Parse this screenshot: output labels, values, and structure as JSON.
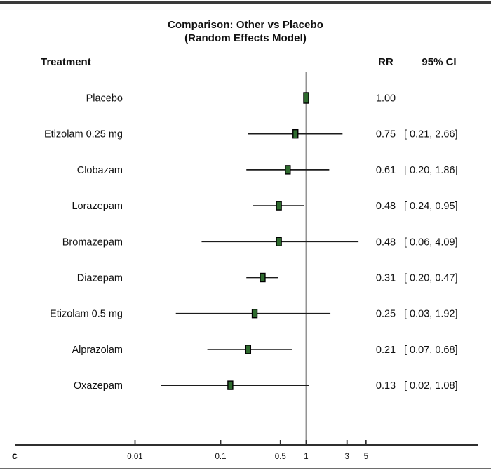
{
  "frame": {
    "top_rule_color": "#3a3a3a",
    "bottom_rule_color": "#6e6e6e"
  },
  "chart_data": {
    "type": "forest",
    "title": "Comparison: Other vs Placebo",
    "subtitle": "(Random Effects Model)",
    "panel_label": "c",
    "columns": {
      "treatment": "Treatment",
      "rr": "RR",
      "ci": "95% CI"
    },
    "x_scale": "log10",
    "ref_line": 1,
    "x_ticks": [
      {
        "value": 0.01,
        "label": "0.01"
      },
      {
        "value": 0.1,
        "label": "0.1"
      },
      {
        "value": 0.5,
        "label": "0.5"
      },
      {
        "value": 1,
        "label": "1"
      },
      {
        "value": 3,
        "label": "3"
      },
      {
        "value": 5,
        "label": "5"
      }
    ],
    "rows": [
      {
        "label": "Placebo",
        "rr": 1.0,
        "rr_text": "1.00",
        "lower": null,
        "upper": null,
        "ci_text": "",
        "marker_h": 15
      },
      {
        "label": "Etizolam 0.25 mg",
        "rr": 0.75,
        "rr_text": "0.75",
        "lower": 0.21,
        "upper": 2.66,
        "ci_text": "[ 0.21, 2.66]",
        "marker_h": 12
      },
      {
        "label": "Clobazam",
        "rr": 0.61,
        "rr_text": "0.61",
        "lower": 0.2,
        "upper": 1.86,
        "ci_text": "[ 0.20, 1.86]",
        "marker_h": 12
      },
      {
        "label": "Lorazepam",
        "rr": 0.48,
        "rr_text": "0.48",
        "lower": 0.24,
        "upper": 0.95,
        "ci_text": "[ 0.24, 0.95]",
        "marker_h": 12
      },
      {
        "label": "Bromazepam",
        "rr": 0.48,
        "rr_text": "0.48",
        "lower": 0.06,
        "upper": 4.09,
        "ci_text": "[ 0.06, 4.09]",
        "marker_h": 12
      },
      {
        "label": "Diazepam",
        "rr": 0.31,
        "rr_text": "0.31",
        "lower": 0.2,
        "upper": 0.47,
        "ci_text": "[ 0.20, 0.47]",
        "marker_h": 12
      },
      {
        "label": "Etizolam 0.5 mg",
        "rr": 0.25,
        "rr_text": "0.25",
        "lower": 0.03,
        "upper": 1.92,
        "ci_text": "[ 0.03, 1.92]",
        "marker_h": 12
      },
      {
        "label": "Alprazolam",
        "rr": 0.21,
        "rr_text": "0.21",
        "lower": 0.07,
        "upper": 0.68,
        "ci_text": "[ 0.07, 0.68]",
        "marker_h": 12
      },
      {
        "label": "Oxazepam",
        "rr": 0.13,
        "rr_text": "0.13",
        "lower": 0.02,
        "upper": 1.08,
        "ci_text": "[ 0.02, 1.08]",
        "marker_h": 12
      }
    ],
    "colors": {
      "marker_fill": "#2e6b2e",
      "marker_stroke": "#000000",
      "ci_line": "#1c1c1c",
      "ref_line": "#949494",
      "axis": "#2f2f2f",
      "text": "#111111"
    }
  }
}
